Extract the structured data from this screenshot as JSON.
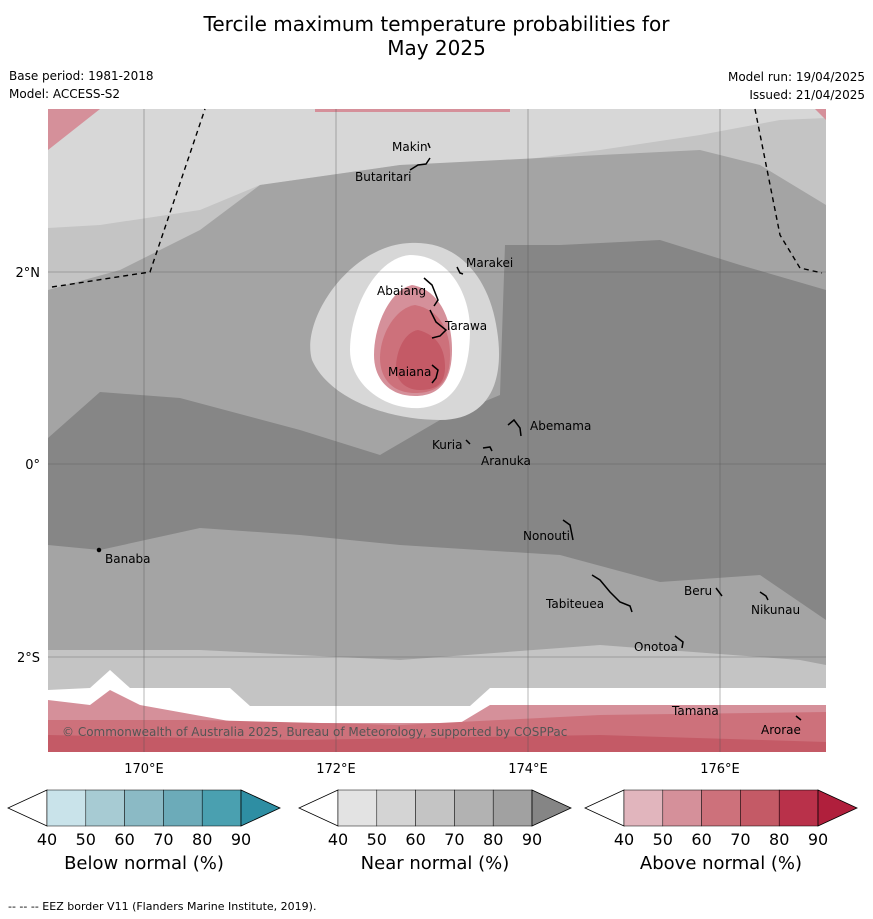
{
  "title": {
    "line1": "Tercile maximum temperature probabilities for",
    "line2": "May 2025"
  },
  "meta": {
    "base_period": "Base period: 1981-2018",
    "model": "Model: ACCESS-S2",
    "model_run": "Model run: 19/04/2025",
    "issued": "Issued: 21/04/2025"
  },
  "map": {
    "lon_ticks": [
      "170°E",
      "172°E",
      "174°E",
      "176°E"
    ],
    "lat_ticks": [
      "2°N",
      "0°",
      "2°S"
    ],
    "copyright": "© Commonwealth of Australia 2025, Bureau of Meteorology, supported by COSPPac",
    "places": [
      {
        "name": "Makin"
      },
      {
        "name": "Butaritari"
      },
      {
        "name": "Marakei"
      },
      {
        "name": "Abaiang"
      },
      {
        "name": "Tarawa"
      },
      {
        "name": "Maiana"
      },
      {
        "name": "Abemama"
      },
      {
        "name": "Kuria"
      },
      {
        "name": "Aranuka"
      },
      {
        "name": "Nonouti"
      },
      {
        "name": "Banaba"
      },
      {
        "name": "Beru"
      },
      {
        "name": "Tabiteuea"
      },
      {
        "name": "Nikunau"
      },
      {
        "name": "Onotoa"
      },
      {
        "name": "Tamana"
      },
      {
        "name": "Arorae"
      }
    ]
  },
  "colorbars": [
    {
      "label": "Below normal (%)",
      "ticks": [
        "40",
        "50",
        "60",
        "70",
        "80",
        "90"
      ],
      "colors": [
        "#ffffff",
        "#c9e3ea",
        "#a7cbd3",
        "#8bbac5",
        "#6cabb9",
        "#4aa0b0",
        "#2e8ea3"
      ]
    },
    {
      "label": "Near normal (%)",
      "ticks": [
        "40",
        "50",
        "60",
        "70",
        "80",
        "90"
      ],
      "colors": [
        "#ffffff",
        "#e3e3e3",
        "#d4d4d4",
        "#c4c4c4",
        "#b2b2b2",
        "#a1a1a1",
        "#858585"
      ]
    },
    {
      "label": "Above normal (%)",
      "ticks": [
        "40",
        "50",
        "60",
        "70",
        "80",
        "90"
      ],
      "colors": [
        "#ffffff",
        "#e1b5bd",
        "#d5909a",
        "#cd717b",
        "#c45a66",
        "#b9314a",
        "#b01f3c"
      ]
    }
  ],
  "footer": "--  --  -- EEZ border V11 (Flanders Marine Institute, 2019)."
}
